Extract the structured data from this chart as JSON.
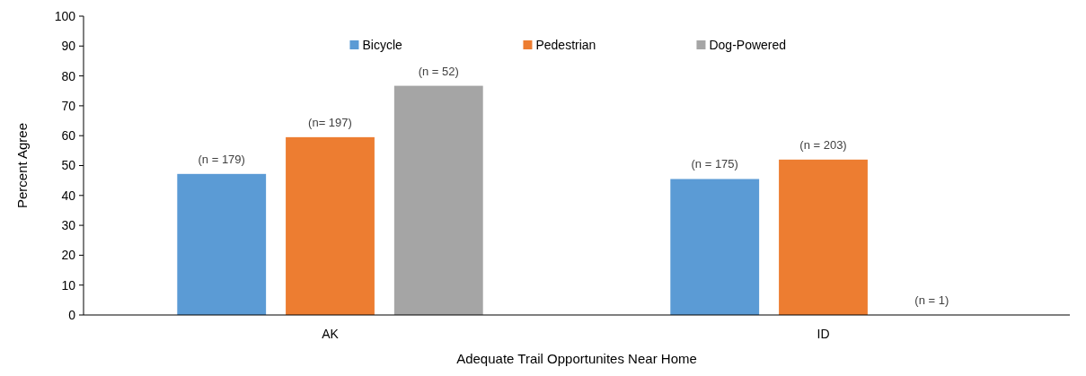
{
  "chart_data": {
    "type": "bar",
    "xlabel": "Adequate Trail Opportunites Near Home",
    "ylabel": "Percent Agree",
    "categories": [
      "AK",
      "ID"
    ],
    "series": [
      {
        "name": "Bicycle",
        "color": "#5b9bd5",
        "values": [
          47.2,
          45.5
        ]
      },
      {
        "name": "Pedestrian",
        "color": "#ed7d31",
        "values": [
          59.5,
          52.0
        ]
      },
      {
        "name": "Dog-Powered",
        "color": "#a5a5a5",
        "values": [
          76.7,
          0
        ]
      }
    ],
    "annotations": [
      "(n = 179)",
      "(n= 197)",
      "(n = 52)",
      "(n = 175)",
      "(n = 203)",
      "(n = 1)"
    ],
    "ylim": [
      0,
      100
    ],
    "yticks": [
      0,
      10,
      20,
      30,
      40,
      50,
      60,
      70,
      80,
      90,
      100
    ],
    "grid": false,
    "legend": "top"
  }
}
